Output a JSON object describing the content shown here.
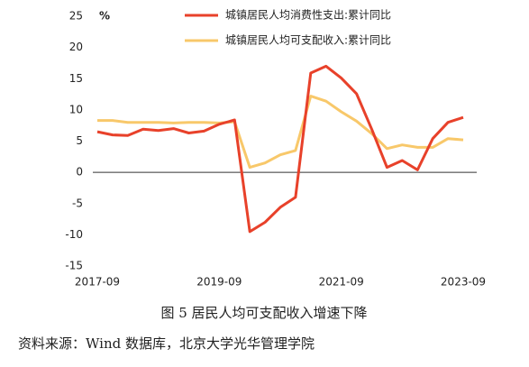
{
  "chart_data": {
    "type": "line",
    "y_unit": "%",
    "categories": [
      "2017-09",
      null,
      null,
      null,
      null,
      null,
      null,
      null,
      "2019-09",
      null,
      null,
      null,
      null,
      null,
      null,
      null,
      "2021-09",
      null,
      null,
      null,
      null,
      null,
      null,
      null,
      "2023-09"
    ],
    "series": [
      {
        "name": "城镇居民人均消费性支出:累计同比",
        "color": "#e8412a",
        "values": [
          6.5,
          6.0,
          5.9,
          6.9,
          6.7,
          7.0,
          6.3,
          6.6,
          7.7,
          8.4,
          -9.5,
          -8.0,
          -5.6,
          -4.0,
          15.9,
          17.0,
          15.1,
          12.6,
          6.9,
          0.8,
          1.9,
          0.4,
          5.4,
          8.0,
          8.8
        ]
      },
      {
        "name": "城镇居民人均可支配收入:累计同比",
        "color": "#f8c86a",
        "values": [
          8.3,
          8.3,
          8.0,
          8.0,
          8.0,
          7.9,
          8.0,
          8.0,
          7.9,
          8.1,
          0.8,
          1.5,
          2.8,
          3.5,
          12.2,
          11.4,
          9.7,
          8.2,
          6.2,
          3.8,
          4.4,
          4.0,
          4.0,
          5.4,
          5.2
        ]
      }
    ],
    "ylim": [
      -15,
      25
    ],
    "yticks": [
      -15,
      -10,
      -5,
      0,
      5,
      10,
      15,
      20,
      25
    ],
    "caption": "图 5 居民人均可支配收入增速下降",
    "source": "资料来源：Wind 数据库，北京大学光华管理学院"
  }
}
